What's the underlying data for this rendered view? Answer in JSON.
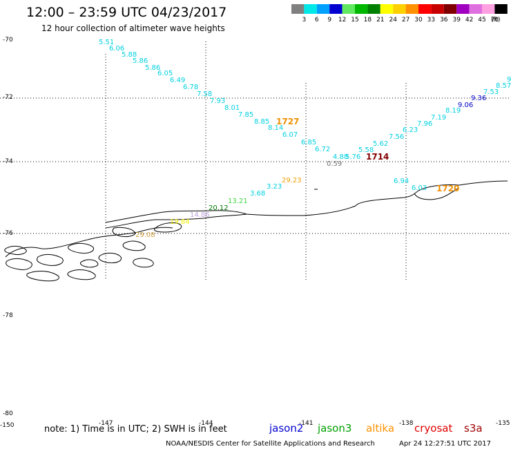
{
  "header": {
    "title": "12:00 – 23:59 UTC 04/23/2017",
    "subtitle": "12 hour collection of altimeter wave heights"
  },
  "legend": {
    "unit": "(ft)",
    "ticks": [
      "3",
      "6",
      "9",
      "12",
      "15",
      "18",
      "21",
      "24",
      "27",
      "30",
      "33",
      "36",
      "39",
      "42",
      "45",
      "70"
    ],
    "colors": [
      "#808080",
      "#00e8e8",
      "#00a0ff",
      "#0000d0",
      "#60e860",
      "#00b800",
      "#008000",
      "#ffff00",
      "#ffd000",
      "#ff9000",
      "#ff0000",
      "#c80000",
      "#800000",
      "#a000c0",
      "#e070e0",
      "#ffa0e0",
      "#000000"
    ]
  },
  "axes": {
    "lat_labels": [
      "-70",
      "-72",
      "-74",
      "-76",
      "-78",
      "-80"
    ],
    "lon_labels": [
      "-150",
      "-147",
      "-144",
      "-141",
      "-138",
      "-135"
    ]
  },
  "tracks": {
    "cyan_descending": [
      "5.51",
      "6.06",
      "5.88",
      "5.86",
      "5.86",
      "6.05",
      "6.49",
      "6.78",
      "7.58",
      "7.93",
      "8.01",
      "7.85",
      "8.85",
      "8.14",
      "6.07",
      "6.85",
      "6.72",
      "4.88",
      "5.76",
      "5.58",
      "5.62",
      "7.56",
      "6.23",
      "7.96",
      "7.19",
      "8.19",
      "7.53",
      "8.57"
    ],
    "blue_values": [
      "9.06",
      "9.36"
    ],
    "green_values": [
      "13.21",
      "3.68",
      "3.23"
    ],
    "darkgreen_values": [
      "20.12"
    ],
    "orange_values": [
      "29.23"
    ],
    "yellow_values": [
      "19.84"
    ],
    "violet_values": [
      "14.86"
    ],
    "tan_values": [
      "29.08"
    ],
    "gray_values": [
      "0.59"
    ],
    "right_cyan": [
      "6.94",
      "6.03"
    ]
  },
  "time_labels": {
    "t1727": "1727",
    "t1714": "1714",
    "t1720": "1720"
  },
  "footer": {
    "note": "note: 1) Time is in UTC; 2) SWH is in feet",
    "satellites": [
      {
        "name": "jason2",
        "color": "#0000d0"
      },
      {
        "name": "jason3",
        "color": "#00a000"
      },
      {
        "name": "altika",
        "color": "#ff9000"
      },
      {
        "name": "cryosat",
        "color": "#e00000"
      },
      {
        "name": "s3a",
        "color": "#a00000"
      }
    ],
    "credit": "NOAA/NESDIS Center for Satellite Applications and Research",
    "timestamp": "Apr 24 12:27:51 UTC 2017"
  }
}
